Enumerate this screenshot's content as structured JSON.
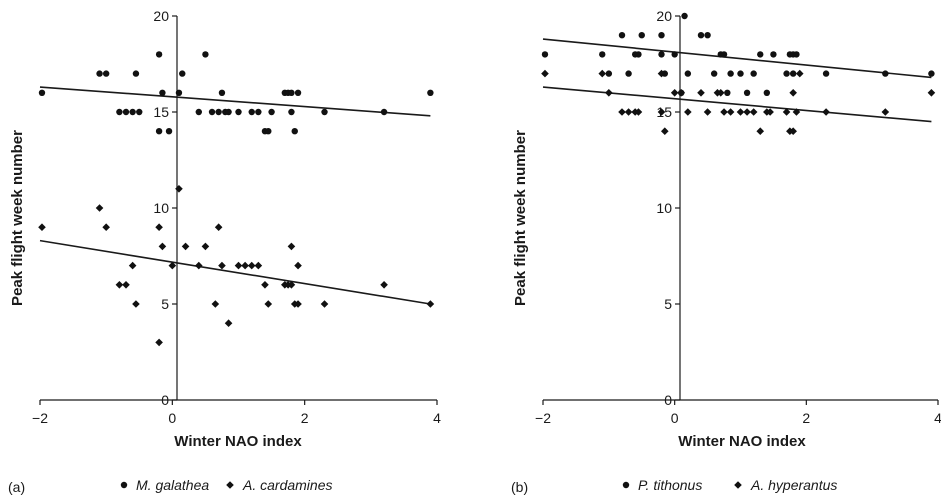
{
  "chart_data": [
    {
      "type": "scatter",
      "panel_label": "(a)",
      "xlabel": "Winter NAO index",
      "ylabel": "Peak flight week number",
      "xlim": [
        -2,
        4
      ],
      "ylim": [
        0,
        20
      ],
      "xticks": [
        -2,
        0,
        2,
        4
      ],
      "yticks": [
        0,
        5,
        10,
        15,
        20
      ],
      "x_tick_labels": [
        "−2",
        "0",
        "2",
        "4"
      ],
      "y_tick_labels": [
        "0",
        "5",
        "10",
        "15",
        "20"
      ],
      "series": [
        {
          "name": "M. galathea",
          "marker": "circle",
          "points": [
            [
              -1.97,
              16
            ],
            [
              -1.1,
              17
            ],
            [
              -1.0,
              17
            ],
            [
              -0.8,
              15
            ],
            [
              -0.7,
              15
            ],
            [
              -0.6,
              15
            ],
            [
              -0.55,
              17
            ],
            [
              -0.5,
              15
            ],
            [
              -0.2,
              14
            ],
            [
              -0.2,
              18
            ],
            [
              -0.15,
              16
            ],
            [
              -0.05,
              14
            ],
            [
              0.1,
              16
            ],
            [
              0.15,
              17
            ],
            [
              0.4,
              15
            ],
            [
              0.5,
              18
            ],
            [
              0.6,
              15
            ],
            [
              0.7,
              15
            ],
            [
              0.75,
              16
            ],
            [
              0.8,
              15
            ],
            [
              0.85,
              15
            ],
            [
              1.0,
              15
            ],
            [
              1.2,
              15
            ],
            [
              1.3,
              15
            ],
            [
              1.4,
              14
            ],
            [
              1.45,
              14
            ],
            [
              1.5,
              15
            ],
            [
              1.7,
              16
            ],
            [
              1.75,
              16
            ],
            [
              1.8,
              16
            ],
            [
              1.8,
              15
            ],
            [
              1.85,
              14
            ],
            [
              1.9,
              16
            ],
            [
              2.3,
              15
            ],
            [
              3.2,
              15
            ],
            [
              3.9,
              16
            ]
          ],
          "trend": [
            [
              -2,
              16.3
            ],
            [
              3.9,
              14.8
            ]
          ]
        },
        {
          "name": "A. cardamines",
          "marker": "diamond",
          "points": [
            [
              -1.97,
              9
            ],
            [
              -1.1,
              10
            ],
            [
              -1.0,
              9
            ],
            [
              -0.8,
              6
            ],
            [
              -0.7,
              6
            ],
            [
              -0.6,
              7
            ],
            [
              -0.55,
              5
            ],
            [
              -0.2,
              9
            ],
            [
              -0.2,
              3
            ],
            [
              -0.15,
              8
            ],
            [
              0.0,
              7
            ],
            [
              0.1,
              11
            ],
            [
              0.2,
              8
            ],
            [
              0.4,
              7
            ],
            [
              0.5,
              8
            ],
            [
              0.65,
              5
            ],
            [
              0.7,
              9
            ],
            [
              0.75,
              7
            ],
            [
              0.85,
              4
            ],
            [
              1.0,
              7
            ],
            [
              1.1,
              7
            ],
            [
              1.2,
              7
            ],
            [
              1.3,
              7
            ],
            [
              1.4,
              6
            ],
            [
              1.45,
              5
            ],
            [
              1.7,
              6
            ],
            [
              1.75,
              6
            ],
            [
              1.8,
              8
            ],
            [
              1.8,
              6
            ],
            [
              1.85,
              5
            ],
            [
              1.9,
              7
            ],
            [
              1.9,
              5
            ],
            [
              2.3,
              5
            ],
            [
              3.2,
              6
            ],
            [
              3.9,
              5
            ]
          ],
          "trend": [
            [
              -2,
              8.3
            ],
            [
              3.9,
              5.0
            ]
          ]
        }
      ]
    },
    {
      "type": "scatter",
      "panel_label": "(b)",
      "xlabel": "Winter NAO index",
      "ylabel": "Peak flight week number",
      "xlim": [
        -2,
        4
      ],
      "ylim": [
        0,
        20
      ],
      "xticks": [
        -2,
        0,
        2,
        4
      ],
      "yticks": [
        0,
        5,
        10,
        15,
        20
      ],
      "x_tick_labels": [
        "−2",
        "0",
        "2",
        "4"
      ],
      "y_tick_labels": [
        "0",
        "5",
        "10",
        "15",
        "20"
      ],
      "series": [
        {
          "name": "P. tithonus",
          "marker": "circle",
          "points": [
            [
              -1.97,
              18
            ],
            [
              -1.1,
              18
            ],
            [
              -1.0,
              17
            ],
            [
              -0.8,
              19
            ],
            [
              -0.7,
              17
            ],
            [
              -0.6,
              18
            ],
            [
              -0.55,
              18
            ],
            [
              -0.5,
              19
            ],
            [
              -0.2,
              19
            ],
            [
              -0.2,
              18
            ],
            [
              -0.15,
              17
            ],
            [
              0.0,
              18
            ],
            [
              0.1,
              16
            ],
            [
              0.15,
              20
            ],
            [
              0.2,
              17
            ],
            [
              0.4,
              19
            ],
            [
              0.5,
              19
            ],
            [
              0.6,
              17
            ],
            [
              0.7,
              18
            ],
            [
              0.75,
              18
            ],
            [
              0.8,
              16
            ],
            [
              0.85,
              17
            ],
            [
              1.0,
              17
            ],
            [
              1.1,
              16
            ],
            [
              1.2,
              17
            ],
            [
              1.3,
              18
            ],
            [
              1.4,
              16
            ],
            [
              1.5,
              18
            ],
            [
              1.7,
              17
            ],
            [
              1.75,
              18
            ],
            [
              1.8,
              18
            ],
            [
              1.8,
              17
            ],
            [
              1.85,
              18
            ],
            [
              2.3,
              17
            ],
            [
              3.2,
              17
            ],
            [
              3.9,
              17
            ]
          ],
          "trend": [
            [
              -2,
              18.8
            ],
            [
              3.9,
              16.8
            ]
          ]
        },
        {
          "name": "A. hyperantus",
          "marker": "diamond",
          "points": [
            [
              -1.97,
              17
            ],
            [
              -1.1,
              17
            ],
            [
              -1.0,
              16
            ],
            [
              -0.8,
              15
            ],
            [
              -0.7,
              15
            ],
            [
              -0.6,
              15
            ],
            [
              -0.55,
              15
            ],
            [
              -0.2,
              17
            ],
            [
              -0.2,
              15
            ],
            [
              -0.15,
              14
            ],
            [
              0.0,
              16
            ],
            [
              0.1,
              16
            ],
            [
              0.2,
              15
            ],
            [
              0.4,
              16
            ],
            [
              0.5,
              15
            ],
            [
              0.65,
              16
            ],
            [
              0.7,
              16
            ],
            [
              0.75,
              15
            ],
            [
              0.85,
              15
            ],
            [
              1.0,
              15
            ],
            [
              1.1,
              15
            ],
            [
              1.2,
              15
            ],
            [
              1.3,
              14
            ],
            [
              1.4,
              15
            ],
            [
              1.45,
              15
            ],
            [
              1.7,
              15
            ],
            [
              1.75,
              14
            ],
            [
              1.8,
              14
            ],
            [
              1.8,
              16
            ],
            [
              1.85,
              15
            ],
            [
              1.9,
              17
            ],
            [
              2.3,
              15
            ],
            [
              3.2,
              15
            ],
            [
              3.9,
              16
            ]
          ],
          "trend": [
            [
              -2,
              16.3
            ],
            [
              3.9,
              14.5
            ]
          ]
        }
      ]
    }
  ]
}
